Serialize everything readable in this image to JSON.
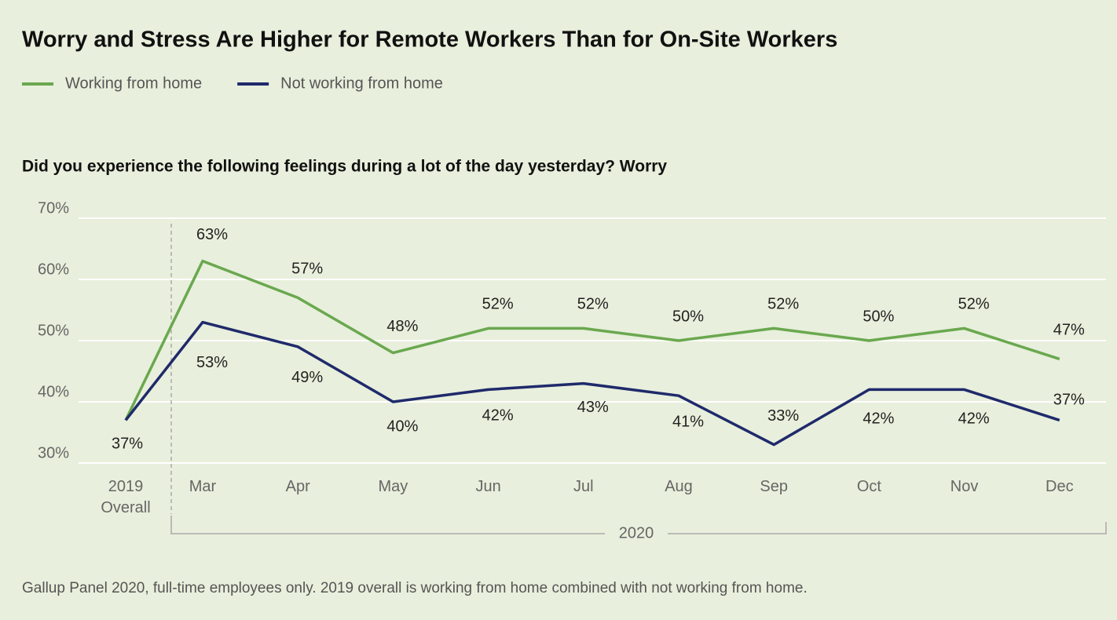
{
  "chart_data": {
    "type": "line",
    "title": "Worry and Stress Are Higher for Remote Workers Than for On-Site Workers",
    "subtitle": "Did you experience the following feelings during a lot of the day yesterday? Worry",
    "categories": [
      "2019 Overall",
      "Mar",
      "Apr",
      "May",
      "Jun",
      "Jul",
      "Aug",
      "Sep",
      "Oct",
      "Nov",
      "Dec"
    ],
    "period_label": "2020",
    "series": [
      {
        "name": "Working from home",
        "color": "#6aa84f",
        "values": [
          37,
          63,
          57,
          48,
          52,
          52,
          50,
          52,
          50,
          52,
          47
        ],
        "value_labels": [
          "37%",
          "63%",
          "57%",
          "48%",
          "52%",
          "52%",
          "50%",
          "52%",
          "50%",
          "52%",
          "47%"
        ]
      },
      {
        "name": "Not working from home",
        "color": "#1f2a6b",
        "values": [
          37,
          53,
          49,
          40,
          42,
          43,
          41,
          33,
          42,
          42,
          37
        ],
        "value_labels": [
          null,
          "53%",
          "49%",
          "40%",
          "42%",
          "43%",
          "41%",
          "33%",
          "42%",
          "42%",
          "37%"
        ]
      }
    ],
    "ylim": [
      30,
      70
    ],
    "yticks": [
      {
        "value": 30,
        "label": "30%"
      },
      {
        "value": 40,
        "label": "40%"
      },
      {
        "value": 50,
        "label": "50%"
      },
      {
        "value": 60,
        "label": "60%"
      },
      {
        "value": 70,
        "label": "70%"
      }
    ],
    "grid": true,
    "legend": "top-left",
    "note": "Gallup Panel 2020, full-time employees only. 2019 overall is working from home combined with not working from home."
  }
}
